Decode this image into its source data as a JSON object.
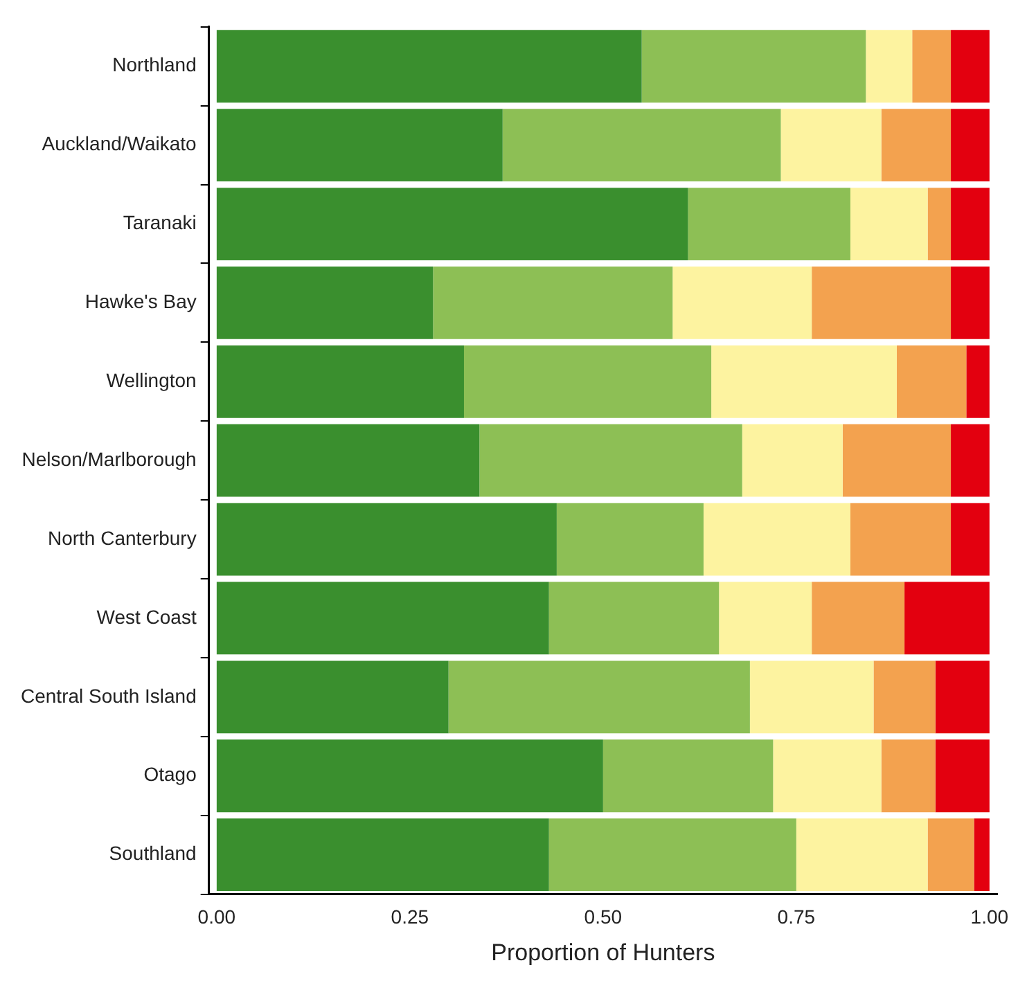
{
  "chart_data": {
    "type": "bar",
    "orientation": "horizontal",
    "stacked": true,
    "xlabel": "Proportion of Hunters",
    "categories": [
      "Northland",
      "Auckland/Waikato",
      "Taranaki",
      "Hawke's Bay",
      "Wellington",
      "Nelson/Marlborough",
      "North Canterbury",
      "West Coast",
      "Central South Island",
      "Otago",
      "Southland"
    ],
    "series": [
      {
        "color": "#3a8f2e",
        "values": [
          0.55,
          0.37,
          0.61,
          0.28,
          0.32,
          0.34,
          0.44,
          0.43,
          0.3,
          0.5,
          0.43
        ]
      },
      {
        "color": "#8dbf55",
        "values": [
          0.29,
          0.36,
          0.21,
          0.31,
          0.32,
          0.34,
          0.19,
          0.22,
          0.39,
          0.22,
          0.32
        ]
      },
      {
        "color": "#fdf3a0",
        "values": [
          0.06,
          0.13,
          0.1,
          0.18,
          0.24,
          0.13,
          0.19,
          0.12,
          0.16,
          0.14,
          0.17
        ]
      },
      {
        "color": "#f3a24f",
        "values": [
          0.05,
          0.09,
          0.03,
          0.18,
          0.09,
          0.14,
          0.13,
          0.12,
          0.08,
          0.07,
          0.06
        ]
      },
      {
        "color": "#e3000f",
        "values": [
          0.05,
          0.05,
          0.05,
          0.05,
          0.03,
          0.05,
          0.05,
          0.11,
          0.07,
          0.07,
          0.02
        ]
      }
    ],
    "xlim": [
      -0.01,
      1.01
    ],
    "xticks": [
      {
        "value": 0,
        "label": "0.00"
      },
      {
        "value": 0.25,
        "label": "0.25"
      },
      {
        "value": 0.5,
        "label": "0.50"
      },
      {
        "value": 0.75,
        "label": "0.75"
      },
      {
        "value": 1,
        "label": "1.00"
      }
    ],
    "grid": false,
    "legend": false
  }
}
